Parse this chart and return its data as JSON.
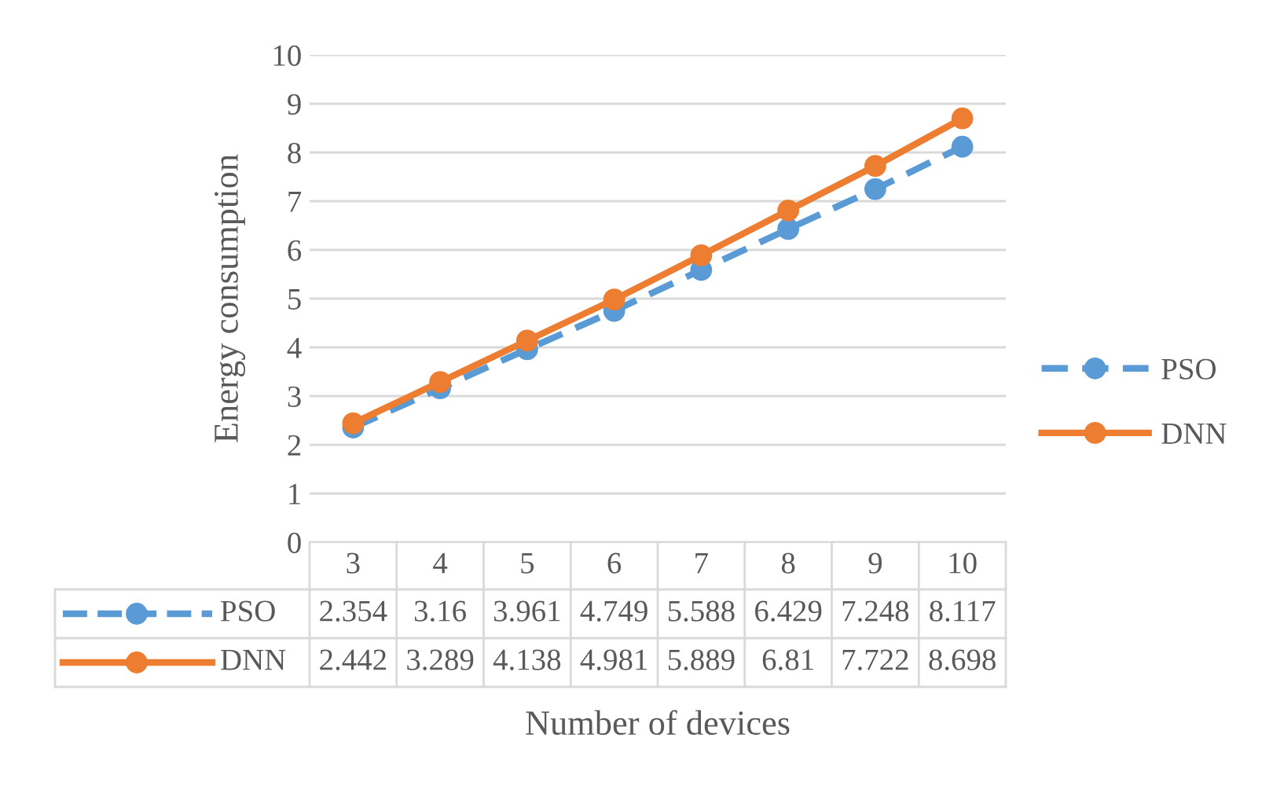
{
  "chart_data": {
    "type": "line",
    "xlabel": "Number of devices",
    "ylabel": "Energy consumption",
    "categories": [
      "3",
      "4",
      "5",
      "6",
      "7",
      "8",
      "9",
      "10"
    ],
    "series": [
      {
        "name": "PSO",
        "color": "#5b9bd5",
        "line_style": "dashed",
        "values": [
          2.354,
          3.16,
          3.961,
          4.749,
          5.588,
          6.429,
          7.248,
          8.117
        ]
      },
      {
        "name": "DNN",
        "color": "#ed7d31",
        "line_style": "solid",
        "values": [
          2.442,
          3.289,
          4.138,
          4.981,
          5.889,
          6.81,
          7.722,
          8.698
        ]
      }
    ],
    "ylim": [
      0,
      10
    ],
    "yticks": [
      0,
      1,
      2,
      3,
      4,
      5,
      6,
      7,
      8,
      9,
      10
    ],
    "grid": "y",
    "legend": "right",
    "marker": "circle",
    "data_labels": true
  }
}
